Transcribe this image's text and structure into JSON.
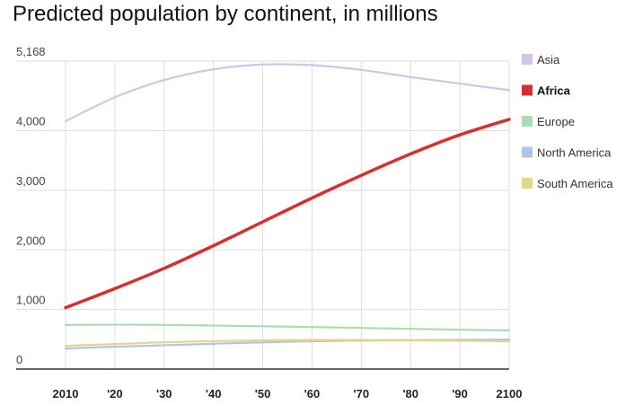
{
  "chart_data": {
    "type": "line",
    "title": "Predicted population by continent, in millions",
    "xlabel": "",
    "ylabel": "",
    "x": [
      2010,
      2020,
      2030,
      2040,
      2050,
      2060,
      2070,
      2080,
      2090,
      2100
    ],
    "xtick_labels": [
      "2010",
      "'20",
      "'30",
      "'40",
      "'50",
      "'60",
      "'70",
      "'80",
      "'90",
      "2100"
    ],
    "yticks": [
      0,
      1000,
      2000,
      3000,
      4000,
      5168
    ],
    "ytick_labels": [
      "0",
      "1,000",
      "2,000",
      "3,000",
      "4,000",
      "5,168"
    ],
    "ylim": [
      0,
      5168
    ],
    "grid": true,
    "legend_position": "right",
    "highlighted_series": "Africa",
    "series": [
      {
        "name": "Asia",
        "color": "#d5c3e6",
        "values": [
          4160,
          4560,
          4850,
          5030,
          5110,
          5100,
          5020,
          4900,
          4790,
          4680
        ]
      },
      {
        "name": "Africa",
        "color": "#d62f2f",
        "values": [
          1030,
          1350,
          1690,
          2070,
          2470,
          2870,
          3250,
          3610,
          3930,
          4190
        ]
      },
      {
        "name": "Europe",
        "color": "#aedbb2",
        "values": [
          740,
          745,
          740,
          730,
          718,
          705,
          690,
          675,
          660,
          650
        ]
      },
      {
        "name": "North America",
        "color": "#aac8e6",
        "values": [
          345,
          375,
          400,
          425,
          448,
          466,
          478,
          486,
          490,
          495
        ]
      },
      {
        "name": "South America",
        "color": "#e8d38a",
        "values": [
          390,
          420,
          450,
          470,
          482,
          488,
          488,
          484,
          475,
          465
        ]
      }
    ]
  }
}
